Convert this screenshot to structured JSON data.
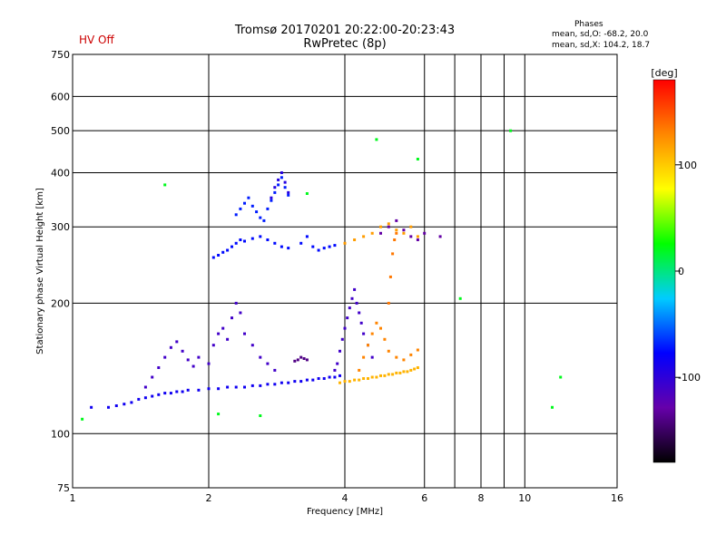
{
  "status": {
    "hv_text": "HV Off",
    "hv_color": "#cc0000"
  },
  "phases_box": {
    "title": "Phases",
    "line_o": "mean, sd,O: -68.2, 20.0",
    "line_x": "mean, sd,X: 104.2, 18.7"
  },
  "chart_data": {
    "type": "scatter",
    "title": "Tromsø 20170201 20:22:00-20:23:43",
    "subtitle": "RwPretec (8p)",
    "xlabel": "Frequency [MHz]",
    "ylabel": "Stationary phase Virtual Height [km]",
    "xscale": "log",
    "yscale": "log",
    "xlim": [
      1,
      16
    ],
    "ylim": [
      75,
      750
    ],
    "xticks": [
      1,
      2,
      4,
      6,
      8,
      10,
      16
    ],
    "xtick_labels": [
      "1",
      "2",
      "4",
      "6",
      "8",
      "10",
      "16"
    ],
    "x_gridlines": [
      1,
      2,
      4,
      6,
      7,
      8,
      9,
      10,
      16
    ],
    "yticks": [
      75,
      100,
      200,
      300,
      400,
      500,
      600,
      750
    ],
    "ytick_labels": [
      "75",
      "100",
      "200",
      "300",
      "400",
      "500",
      "600",
      "750"
    ],
    "y_gridlines": [
      100,
      200,
      300,
      400,
      500,
      600
    ],
    "grid": true,
    "colorbar": {
      "label": "[deg]",
      "range": [
        -180,
        180
      ],
      "ticks": [
        100,
        0,
        -100
      ],
      "tick_labels": [
        "100",
        "0",
        "-100"
      ],
      "colors": [
        "#000000",
        "#6600aa",
        "#0000ff",
        "#00ccff",
        "#00ff00",
        "#ffff00",
        "#ff8800",
        "#ff0000"
      ]
    },
    "series": [
      {
        "x": [
          1.1,
          1.2,
          1.25,
          1.3,
          1.35,
          1.4,
          1.45,
          1.5,
          1.55,
          1.6,
          1.65,
          1.7,
          1.75,
          1.8,
          1.9,
          2.0,
          2.1,
          2.2,
          2.3,
          2.4,
          2.5,
          2.6,
          2.7,
          2.8,
          2.9,
          3.0,
          3.1,
          3.2,
          3.3,
          3.4,
          3.5,
          3.6,
          3.7,
          3.8,
          3.9
        ],
        "y": [
          115,
          115,
          116,
          117,
          118,
          120,
          121,
          122,
          123,
          124,
          124,
          125,
          125,
          126,
          126,
          127,
          127,
          128,
          128,
          128,
          129,
          129,
          130,
          130,
          131,
          131,
          132,
          132,
          133,
          133,
          134,
          134,
          135,
          135,
          136
        ],
        "phase": -85
      },
      {
        "x": [
          1.45,
          1.5,
          1.55,
          1.6,
          1.65,
          1.7,
          1.75,
          1.8,
          1.85,
          1.9,
          2.0,
          2.05,
          2.1,
          2.15,
          2.2,
          2.25,
          2.3,
          2.35,
          2.4,
          2.5,
          2.6,
          2.7,
          2.8
        ],
        "y": [
          128,
          135,
          142,
          150,
          158,
          163,
          155,
          148,
          143,
          150,
          145,
          160,
          170,
          175,
          165,
          185,
          200,
          190,
          170,
          160,
          150,
          145,
          140
        ],
        "phase": -110
      },
      {
        "x": [
          2.05,
          2.1,
          2.15,
          2.2,
          2.25,
          2.3,
          2.35,
          2.4,
          2.5,
          2.6,
          2.7,
          2.8,
          2.9,
          3.0,
          3.2,
          3.3,
          3.4,
          3.5,
          3.6,
          3.7,
          3.8
        ],
        "y": [
          255,
          258,
          262,
          265,
          270,
          275,
          280,
          278,
          282,
          285,
          280,
          275,
          270,
          268,
          275,
          285,
          270,
          265,
          268,
          270,
          272
        ],
        "phase": -75
      },
      {
        "x": [
          2.3,
          2.35,
          2.4,
          2.45,
          2.5,
          2.55,
          2.6,
          2.65,
          2.7,
          2.75,
          2.8,
          2.85,
          2.9,
          2.95,
          3.0
        ],
        "y": [
          320,
          330,
          340,
          350,
          335,
          325,
          315,
          310,
          330,
          345,
          360,
          375,
          390,
          370,
          355
        ],
        "phase": -70
      },
      {
        "x": [
          2.75,
          2.8,
          2.85,
          2.9,
          2.95,
          3.0
        ],
        "y": [
          350,
          370,
          385,
          400,
          380,
          360
        ],
        "phase": -95
      },
      {
        "x": [
          3.8,
          3.85,
          3.9,
          3.95,
          4.0,
          4.05,
          4.1,
          4.15,
          4.2,
          4.25,
          4.3,
          4.35,
          4.4,
          4.5,
          4.6
        ],
        "y": [
          140,
          145,
          155,
          165,
          175,
          185,
          195,
          205,
          215,
          200,
          190,
          180,
          170,
          160,
          150
        ],
        "phase": -110
      },
      {
        "x": [
          3.1,
          3.15,
          3.2,
          3.25,
          3.3
        ],
        "y": [
          147,
          148,
          150,
          149,
          148
        ],
        "phase": -140
      },
      {
        "x": [
          3.9,
          4.0,
          4.1,
          4.2,
          4.3,
          4.4,
          4.5,
          4.6,
          4.7,
          4.8,
          4.9,
          5.0,
          5.1,
          5.2,
          5.3,
          5.4,
          5.5,
          5.6,
          5.7,
          5.8
        ],
        "y": [
          131,
          132,
          132,
          133,
          133,
          134,
          134,
          135,
          135,
          136,
          136,
          137,
          137,
          138,
          138,
          139,
          139,
          140,
          141,
          142
        ],
        "phase": 110
      },
      {
        "x": [
          4.3,
          4.4,
          4.5,
          4.6,
          4.7,
          4.8,
          4.9,
          5.0,
          5.2,
          5.4,
          5.6,
          5.8
        ],
        "y": [
          140,
          150,
          160,
          170,
          180,
          175,
          165,
          155,
          150,
          148,
          152,
          156
        ],
        "phase": 130
      },
      {
        "x": [
          4.0,
          4.2,
          4.4,
          4.6,
          4.8,
          5.0,
          5.2,
          5.4,
          5.6,
          5.8
        ],
        "y": [
          275,
          280,
          285,
          290,
          300,
          305,
          295,
          290,
          300,
          285
        ],
        "phase": 120
      },
      {
        "x": [
          4.8,
          5.0,
          5.2,
          5.4,
          5.6,
          5.8,
          6.0,
          6.5
        ],
        "y": [
          290,
          300,
          310,
          295,
          285,
          280,
          290,
          285
        ],
        "phase": -130
      },
      {
        "x": [
          5.0,
          5.05,
          5.1,
          5.15,
          5.2
        ],
        "y": [
          200,
          230,
          260,
          280,
          290
        ],
        "phase": 135
      },
      {
        "x": [
          1.05,
          1.6,
          2.1,
          2.6,
          3.3,
          4.7,
          5.8,
          11.5,
          12.0,
          9.3,
          7.2
        ],
        "y": [
          108,
          375,
          111,
          110,
          358,
          477,
          430,
          115,
          135,
          500,
          205
        ],
        "phase": 20
      }
    ]
  }
}
